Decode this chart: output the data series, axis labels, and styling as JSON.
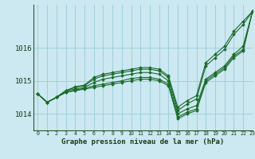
{
  "title": "Graphe pression niveau de la mer (hPa)",
  "background_color": "#cce8f0",
  "grid_color": "#99ccd9",
  "line_color": "#1a6b2a",
  "marker_color": "#1a6b2a",
  "xlim": [
    -0.5,
    23
  ],
  "ylim": [
    1013.5,
    1017.3
  ],
  "yticks": [
    1014,
    1015,
    1016
  ],
  "xticks": [
    0,
    1,
    2,
    3,
    4,
    5,
    6,
    7,
    8,
    9,
    10,
    11,
    12,
    13,
    14,
    15,
    16,
    17,
    18,
    19,
    20,
    21,
    22,
    23
  ],
  "lines": [
    [
      1014.6,
      1014.35,
      1014.5,
      1014.65,
      1014.7,
      1014.75,
      1014.8,
      1014.85,
      1014.9,
      1014.95,
      1015.0,
      1015.05,
      1015.05,
      1015.0,
      1014.85,
      1013.85,
      1014.0,
      1014.1,
      1014.95,
      1015.15,
      1015.35,
      1015.7,
      1015.9,
      1017.1
    ],
    [
      1014.6,
      1014.35,
      1014.5,
      1014.65,
      1014.72,
      1014.77,
      1014.85,
      1014.9,
      1014.95,
      1015.0,
      1015.07,
      1015.1,
      1015.1,
      1015.05,
      1014.9,
      1013.9,
      1014.05,
      1014.15,
      1015.0,
      1015.2,
      1015.4,
      1015.75,
      1015.95,
      1017.1
    ],
    [
      1014.6,
      1014.35,
      1014.5,
      1014.7,
      1014.75,
      1014.8,
      1014.95,
      1015.05,
      1015.1,
      1015.15,
      1015.2,
      1015.25,
      1015.25,
      1015.2,
      1015.0,
      1014.0,
      1014.15,
      1014.25,
      1015.05,
      1015.25,
      1015.45,
      1015.8,
      1016.05,
      1017.1
    ],
    [
      1014.6,
      1014.35,
      1014.5,
      1014.7,
      1014.8,
      1014.85,
      1015.05,
      1015.15,
      1015.2,
      1015.25,
      1015.3,
      1015.35,
      1015.35,
      1015.3,
      1015.1,
      1014.1,
      1014.3,
      1014.45,
      1015.45,
      1015.7,
      1015.95,
      1016.4,
      1016.7,
      1017.1
    ],
    [
      1014.6,
      1014.35,
      1014.5,
      1014.7,
      1014.82,
      1014.87,
      1015.1,
      1015.2,
      1015.25,
      1015.3,
      1015.35,
      1015.4,
      1015.4,
      1015.35,
      1015.15,
      1014.2,
      1014.4,
      1014.55,
      1015.55,
      1015.8,
      1016.05,
      1016.5,
      1016.8,
      1017.1
    ]
  ]
}
